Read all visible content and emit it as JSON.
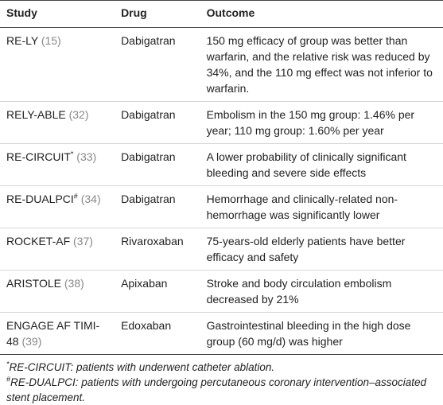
{
  "table": {
    "header": [
      "Study",
      "Drug",
      "Outcome"
    ],
    "rows": [
      {
        "study": "RE-LY",
        "ref": "(15)",
        "drug": "Dabigatran",
        "outcome": "150 mg efficacy of group was better than warfarin, and the relative risk was reduced by 34%, and the 110 mg effect was not inferior to warfarin."
      },
      {
        "study": "RELY-ABLE",
        "ref": "(32)",
        "drug": "Dabigatran",
        "outcome": "Embolism in the 150 mg group: 1.46% per year; 110 mg group: 1.60% per year"
      },
      {
        "study": "RE-CIRCUIT",
        "mark": "*",
        "ref": "(33)",
        "drug": "Dabigatran",
        "outcome": "A lower probability of clinically significant bleeding and severe side effects"
      },
      {
        "study": "RE-DUALPCI",
        "mark": "#",
        "ref": "(34)",
        "drug": "Dabigatran",
        "outcome": "Hemorrhage and clinically-related non-hemorrhage was significantly lower"
      },
      {
        "study": "ROCKET-AF",
        "ref": "(37)",
        "drug": "Rivaroxaban",
        "outcome": "75-years-old elderly patients have better efficacy and safety"
      },
      {
        "study": "ARISTOLE",
        "ref": "(38)",
        "drug": "Apixaban",
        "outcome": "Stroke and body circulation embolism decreased by 21%"
      },
      {
        "study": "ENGAGE AF TIMI-48",
        "ref": "(39)",
        "drug": "Edoxaban",
        "outcome": "Gastrointestinal bleeding in the high dose group (60 mg/d) was higher"
      }
    ]
  },
  "footnotes": [
    {
      "mark": "*",
      "text": "RE-CIRCUIT: patients with underwent catheter ablation."
    },
    {
      "mark": "#",
      "text": "RE-DUALPCI: patients with undergoing percutaneous coronary intervention–associated stent placement."
    }
  ]
}
